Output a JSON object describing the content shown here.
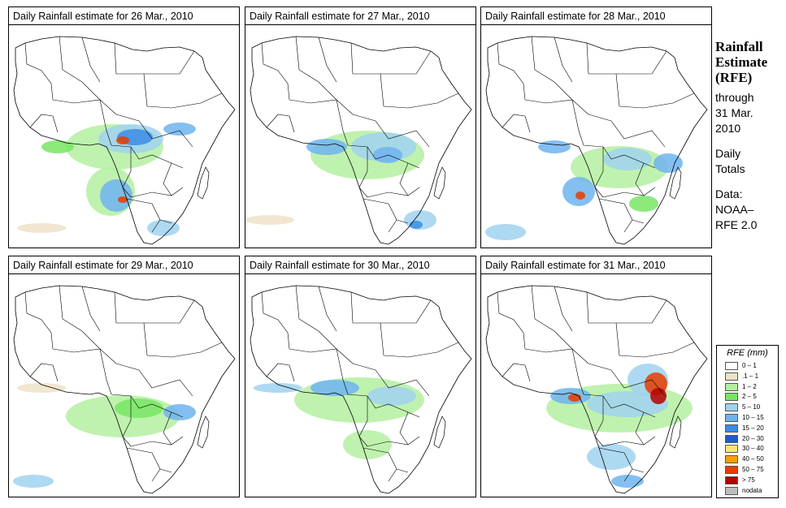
{
  "panels": [
    {
      "title": "Daily Rainfall estimate for  26 Mar., 2010",
      "rain": "p26"
    },
    {
      "title": "Daily Rainfall estimate for  27 Mar., 2010",
      "rain": "p27"
    },
    {
      "title": "Daily Rainfall estimate for  28 Mar., 2010",
      "rain": "p28"
    },
    {
      "title": "Daily Rainfall estimate for  29 Mar., 2010",
      "rain": "p29"
    },
    {
      "title": "Daily Rainfall estimate for  30 Mar., 2010",
      "rain": "p30"
    },
    {
      "title": "Daily Rainfall estimate for  31 Mar., 2010",
      "rain": "p31"
    }
  ],
  "side": {
    "h1": "Rainfall",
    "h2": "Estimate",
    "h3": "(RFE)",
    "t1": "through",
    "t2": "31 Mar.",
    "t3": "2010",
    "t4": "Daily",
    "t5": "Totals",
    "t6": "Data:",
    "t7": "NOAA–",
    "t8": "RFE 2.0"
  },
  "legend": {
    "title": "RFE (mm)",
    "items": [
      {
        "label": "0 – 1",
        "color": "#ffffff"
      },
      {
        "label": ".1 – 1",
        "color": "#eee2c8"
      },
      {
        "label": "1 – 2",
        "color": "#b4f0a0"
      },
      {
        "label": "2 – 5",
        "color": "#78e664"
      },
      {
        "label": "5 – 10",
        "color": "#a0d2f0"
      },
      {
        "label": "10 – 15",
        "color": "#6eb4f0"
      },
      {
        "label": "15 – 20",
        "color": "#3c8ce6"
      },
      {
        "label": "20 – 30",
        "color": "#1e5ad2"
      },
      {
        "label": "30 – 40",
        "color": "#fae678"
      },
      {
        "label": "40 – 50",
        "color": "#faa000"
      },
      {
        "label": "50 – 75",
        "color": "#e63c00"
      },
      {
        "label": "> 75",
        "color": "#b40000"
      },
      {
        "label": "nodata",
        "color": "#bebebe"
      }
    ]
  }
}
